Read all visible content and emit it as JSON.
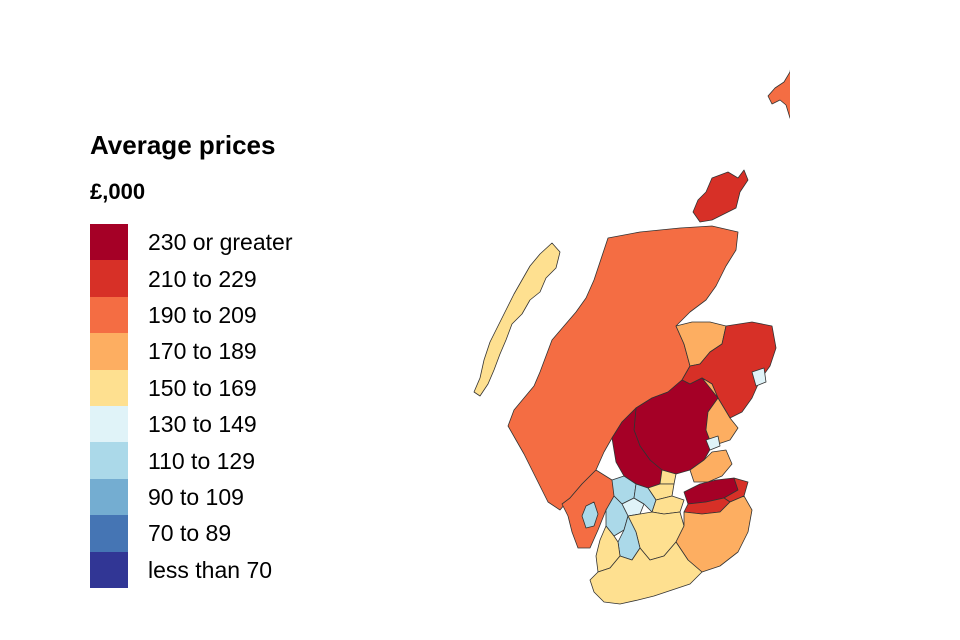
{
  "legend": {
    "title": "Average prices",
    "unit": "£,000",
    "bands": [
      {
        "label": "230 or greater",
        "color": "#a50026"
      },
      {
        "label": "210 to 229",
        "color": "#d73027"
      },
      {
        "label": "190 to 209",
        "color": "#f46d43"
      },
      {
        "label": "170 to 189",
        "color": "#fdae61"
      },
      {
        "label": "150 to 169",
        "color": "#fee090"
      },
      {
        "label": "130 to 149",
        "color": "#e0f3f8"
      },
      {
        "label": "110 to 129",
        "color": "#abd9e9"
      },
      {
        "label": "90 to 109",
        "color": "#74add1"
      },
      {
        "label": "70 to 89",
        "color": "#4575b4"
      },
      {
        "label": "less than 70",
        "color": "#313695"
      }
    ]
  },
  "map": {
    "regions": [
      {
        "id": "shetland",
        "band": 2
      },
      {
        "id": "orkney",
        "band": 1
      },
      {
        "id": "western-isles",
        "band": 4
      },
      {
        "id": "highland",
        "band": 2
      },
      {
        "id": "moray",
        "band": 3
      },
      {
        "id": "aberdeenshire",
        "band": 1
      },
      {
        "id": "aberdeen-city",
        "band": 5
      },
      {
        "id": "argyll-and-bute",
        "band": 2
      },
      {
        "id": "perth-and-kinross",
        "band": 0
      },
      {
        "id": "angus",
        "band": 3
      },
      {
        "id": "dundee",
        "band": 5
      },
      {
        "id": "fife",
        "band": 3
      },
      {
        "id": "stirling",
        "band": 0
      },
      {
        "id": "clackmannanshire",
        "band": 4
      },
      {
        "id": "west-dunbartonshire",
        "band": 6
      },
      {
        "id": "falkirk",
        "band": 4
      },
      {
        "id": "glasgow",
        "band": 5
      },
      {
        "id": "north-lanarkshire",
        "band": 6
      },
      {
        "id": "west-lothian",
        "band": 4
      },
      {
        "id": "edinburgh",
        "band": 0
      },
      {
        "id": "east-lothian",
        "band": 1
      },
      {
        "id": "midlothian",
        "band": 1
      },
      {
        "id": "south-lanarkshire",
        "band": 4
      },
      {
        "id": "east-ayrshire",
        "band": 6
      },
      {
        "id": "north-ayrshire",
        "band": 6
      },
      {
        "id": "south-ayrshire",
        "band": 4
      },
      {
        "id": "scottish-borders",
        "band": 3
      },
      {
        "id": "dumfries-and-galloway",
        "band": 4
      },
      {
        "id": "arran",
        "band": 6
      }
    ]
  }
}
